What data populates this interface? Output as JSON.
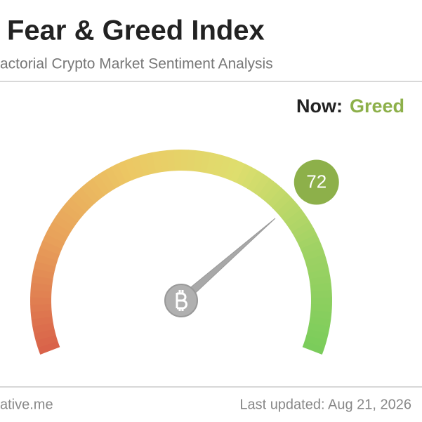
{
  "chart_data": {
    "type": "gauge",
    "title": "Fear & Greed Index",
    "subtitle": "actorial Crypto Market Sentiment Analysis",
    "now_label": "Now:",
    "classification": "Greed",
    "classification_color": "#8db04a",
    "value": 72,
    "lim": [
      0,
      100
    ],
    "needle_color": "#a8a8a8"
  },
  "footer": {
    "source": "ative.me",
    "updated": "Last updated: Aug 21, 2026"
  }
}
